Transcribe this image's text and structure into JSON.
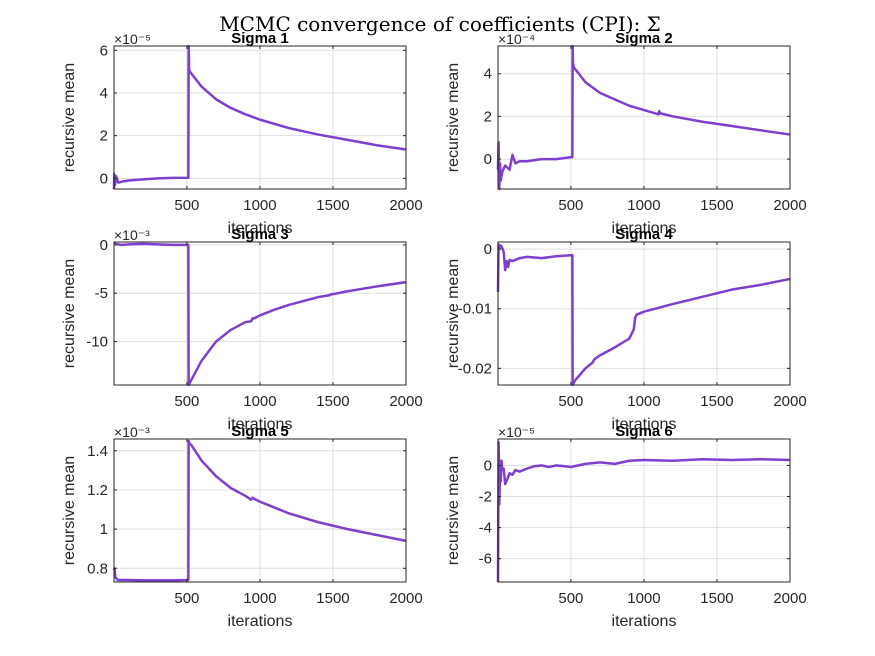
{
  "figure": {
    "title": "MCMC convergence of coefficients (CPI): Σ",
    "line_color": "#7e3fcf"
  },
  "chart_data": [
    {
      "type": "line",
      "title": "Sigma 1",
      "xlabel": "iterations",
      "ylabel": "recursive mean",
      "exponent": "×10⁻⁵",
      "xlim": [
        1,
        2000
      ],
      "ylim": [
        -0.5,
        6.2
      ],
      "xticks": [
        500,
        1000,
        1500,
        2000
      ],
      "xtick_labels": [
        "500",
        "1000",
        "1500",
        "2000"
      ],
      "yticks": [
        0,
        2,
        4,
        6
      ],
      "ytick_labels": [
        "0",
        "2",
        "4",
        "6"
      ],
      "grid": true,
      "series": [
        {
          "x": [
            1,
            3,
            8,
            15,
            30,
            60,
            100,
            200,
            300,
            400,
            510,
            512,
            514,
            515,
            520,
            600,
            700,
            800,
            900,
            1000,
            1200,
            1400,
            1600,
            1800,
            2000
          ],
          "y": [
            -0.5,
            0.2,
            -0.3,
            0.1,
            -0.2,
            -0.15,
            -0.1,
            -0.05,
            0.0,
            0.02,
            0.03,
            6.2,
            5.6,
            5.1,
            5.0,
            4.3,
            3.7,
            3.3,
            3.0,
            2.75,
            2.35,
            2.05,
            1.8,
            1.55,
            1.35
          ]
        }
      ]
    },
    {
      "type": "line",
      "title": "Sigma 2",
      "xlabel": "iterations",
      "ylabel": "recursive mean",
      "exponent": "×10⁻⁴",
      "xlim": [
        1,
        2000
      ],
      "ylim": [
        -1.4,
        5.3
      ],
      "xticks": [
        500,
        1000,
        1500,
        2000
      ],
      "xtick_labels": [
        "500",
        "1000",
        "1500",
        "2000"
      ],
      "yticks": [
        0,
        2,
        4
      ],
      "ytick_labels": [
        "0",
        "2",
        "4"
      ],
      "grid": true,
      "series": [
        {
          "x": [
            1,
            5,
            10,
            15,
            20,
            30,
            50,
            80,
            100,
            120,
            150,
            200,
            300,
            400,
            510,
            512,
            514,
            520,
            600,
            700,
            800,
            900,
            1000,
            1100,
            1105,
            1110,
            1200,
            1400,
            1600,
            1800,
            2000
          ],
          "y": [
            -0.5,
            0.8,
            -1.4,
            -0.2,
            -1.0,
            -0.6,
            -0.3,
            -0.5,
            0.2,
            -0.2,
            -0.1,
            -0.1,
            0.0,
            0.0,
            0.1,
            5.3,
            4.5,
            4.3,
            3.6,
            3.1,
            2.8,
            2.5,
            2.3,
            2.1,
            2.25,
            2.15,
            2.0,
            1.75,
            1.55,
            1.35,
            1.15
          ]
        }
      ]
    },
    {
      "type": "line",
      "title": "Sigma 3",
      "xlabel": "iterations",
      "ylabel": "recursive mean",
      "exponent": "×10⁻³",
      "xlim": [
        1,
        2000
      ],
      "ylim": [
        -14.5,
        0.3
      ],
      "xticks": [
        500,
        1000,
        1500,
        2000
      ],
      "xtick_labels": [
        "500",
        "1000",
        "1500",
        "2000"
      ],
      "yticks": [
        -10,
        -5,
        0
      ],
      "ytick_labels": [
        "-10",
        "-5",
        "0"
      ],
      "grid": true,
      "series": [
        {
          "x": [
            1,
            10,
            50,
            100,
            200,
            300,
            400,
            510,
            512,
            515,
            530,
            600,
            700,
            800,
            900,
            940,
            950,
            960,
            1000,
            1100,
            1200,
            1300,
            1400,
            1480,
            1490,
            1500,
            1600,
            1800,
            2000
          ],
          "y": [
            0.2,
            0.1,
            0.0,
            0.05,
            0.1,
            0.05,
            0.0,
            0.0,
            -14.5,
            -14.4,
            -14.0,
            -12.0,
            -10.0,
            -8.8,
            -8.0,
            -7.9,
            -7.6,
            -7.6,
            -7.3,
            -6.7,
            -6.2,
            -5.8,
            -5.4,
            -5.2,
            -5.1,
            -5.1,
            -4.8,
            -4.3,
            -3.85
          ]
        }
      ]
    },
    {
      "type": "line",
      "title": "Sigma 4",
      "xlabel": "iterations",
      "ylabel": "recursive mean",
      "exponent": "",
      "xlim": [
        1,
        2000
      ],
      "ylim": [
        -0.0228,
        0.0012
      ],
      "xticks": [
        500,
        1000,
        1500,
        2000
      ],
      "xtick_labels": [
        "500",
        "1000",
        "1500",
        "2000"
      ],
      "yticks": [
        -0.02,
        -0.01,
        0
      ],
      "ytick_labels": [
        "-0.02",
        "-0.01",
        "0"
      ],
      "grid": true,
      "series": [
        {
          "x": [
            1,
            5,
            10,
            15,
            20,
            30,
            40,
            50,
            60,
            70,
            80,
            100,
            150,
            200,
            300,
            400,
            510,
            512,
            515,
            530,
            600,
            650,
            660,
            700,
            800,
            900,
            930,
            940,
            950,
            1000,
            1200,
            1400,
            1600,
            1800,
            2000
          ],
          "y": [
            -0.0072,
            0.0008,
            0.0005,
            0.0003,
            0.0006,
            0.0002,
            -0.0005,
            -0.0035,
            -0.002,
            -0.003,
            -0.0018,
            -0.002,
            -0.0015,
            -0.0013,
            -0.0015,
            -0.0012,
            -0.001,
            -0.0228,
            -0.0226,
            -0.022,
            -0.02,
            -0.019,
            -0.0185,
            -0.0178,
            -0.0165,
            -0.015,
            -0.0135,
            -0.0115,
            -0.011,
            -0.0105,
            -0.0092,
            -0.008,
            -0.0068,
            -0.006,
            -0.005
          ]
        }
      ]
    },
    {
      "type": "line",
      "title": "Sigma 5",
      "xlabel": "iterations",
      "ylabel": "recursive mean",
      "exponent": "×10⁻³",
      "xlim": [
        1,
        2000
      ],
      "ylim": [
        0.73,
        1.46
      ],
      "xticks": [
        500,
        1000,
        1500,
        2000
      ],
      "xtick_labels": [
        "500",
        "1000",
        "1500",
        "2000"
      ],
      "yticks": [
        0.8,
        1.0,
        1.2,
        1.4
      ],
      "ytick_labels": [
        "0.8",
        "1",
        "1.2",
        "1.4"
      ],
      "grid": true,
      "series": [
        {
          "x": [
            1,
            5,
            10,
            20,
            30,
            50,
            100,
            200,
            300,
            400,
            510,
            512,
            515,
            530,
            600,
            700,
            800,
            900,
            940,
            950,
            960,
            1000,
            1100,
            1200,
            1400,
            1600,
            1800,
            2000
          ],
          "y": [
            0.79,
            0.8,
            0.755,
            0.745,
            0.74,
            0.74,
            0.74,
            0.738,
            0.738,
            0.738,
            0.74,
            1.45,
            1.44,
            1.43,
            1.35,
            1.27,
            1.21,
            1.17,
            1.15,
            1.16,
            1.155,
            1.14,
            1.11,
            1.08,
            1.035,
            1.0,
            0.97,
            0.94
          ]
        }
      ]
    },
    {
      "type": "line",
      "title": "Sigma 6",
      "xlabel": "iterations",
      "ylabel": "recursive mean",
      "exponent": "×10⁻⁵",
      "xlim": [
        1,
        2000
      ],
      "ylim": [
        -7.5,
        1.7
      ],
      "xticks": [
        500,
        1000,
        1500,
        2000
      ],
      "xtick_labels": [
        "500",
        "1000",
        "1500",
        "2000"
      ],
      "yticks": [
        -6,
        -4,
        -2,
        0
      ],
      "ytick_labels": [
        "-6",
        "-4",
        "-2",
        "0"
      ],
      "grid": true,
      "series": [
        {
          "x": [
            1,
            3,
            5,
            8,
            10,
            15,
            20,
            25,
            30,
            40,
            50,
            60,
            80,
            100,
            120,
            150,
            200,
            250,
            300,
            350,
            400,
            500,
            600,
            700,
            800,
            900,
            1000,
            1200,
            1400,
            1600,
            1800,
            2000
          ],
          "y": [
            -7.5,
            -3.0,
            1.5,
            0.2,
            -2.5,
            -0.5,
            -1.0,
            0.3,
            -0.3,
            -0.2,
            -1.2,
            -1.0,
            -0.5,
            -0.6,
            -0.3,
            -0.4,
            -0.2,
            -0.05,
            0.0,
            -0.1,
            0.0,
            -0.1,
            0.1,
            0.2,
            0.1,
            0.3,
            0.35,
            0.3,
            0.4,
            0.35,
            0.4,
            0.35
          ]
        }
      ]
    }
  ]
}
